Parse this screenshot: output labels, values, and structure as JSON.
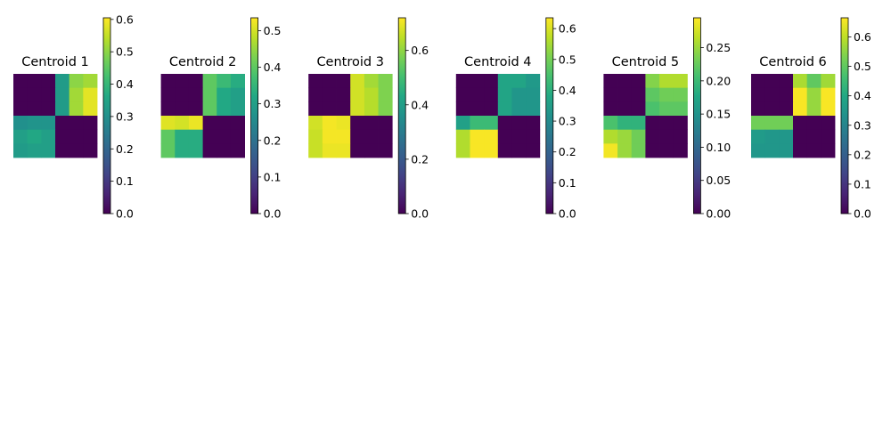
{
  "chart_data": [
    {
      "type": "heatmap",
      "title": "Centroid 1",
      "colormap": "viridis",
      "colorbar_range": [
        0,
        0.605
      ],
      "colorbar_ticks": [
        "0.0",
        "0.1",
        "0.2",
        "0.3",
        "0.4",
        "0.5",
        "0.6"
      ],
      "colorbar_tick_values": [
        0,
        0.1,
        0.2,
        0.3,
        0.4,
        0.5,
        0.6
      ],
      "values": [
        [
          0.0,
          0.0,
          0.0,
          0.33,
          0.5,
          0.52
        ],
        [
          0.0,
          0.0,
          0.0,
          0.33,
          0.52,
          0.58
        ],
        [
          0.0,
          0.0,
          0.0,
          0.33,
          0.52,
          0.58
        ],
        [
          0.3,
          0.31,
          0.31,
          0.0,
          0.0,
          0.0
        ],
        [
          0.34,
          0.36,
          0.34,
          0.0,
          0.0,
          0.0
        ],
        [
          0.33,
          0.34,
          0.34,
          0.0,
          0.0,
          0.0
        ]
      ]
    },
    {
      "type": "heatmap",
      "title": "Centroid 2",
      "colormap": "viridis",
      "colorbar_range": [
        0,
        0.535
      ],
      "colorbar_ticks": [
        "0.0",
        "0.1",
        "0.2",
        "0.3",
        "0.4",
        "0.5"
      ],
      "colorbar_tick_values": [
        0,
        0.1,
        0.2,
        0.3,
        0.4,
        0.5
      ],
      "values": [
        [
          0.0,
          0.0,
          0.0,
          0.4,
          0.36,
          0.33
        ],
        [
          0.0,
          0.0,
          0.0,
          0.4,
          0.32,
          0.3
        ],
        [
          0.0,
          0.0,
          0.0,
          0.4,
          0.32,
          0.3
        ],
        [
          0.51,
          0.5,
          0.52,
          0.0,
          0.0,
          0.0
        ],
        [
          0.4,
          0.33,
          0.33,
          0.0,
          0.0,
          0.0
        ],
        [
          0.4,
          0.33,
          0.33,
          0.0,
          0.0,
          0.0
        ]
      ]
    },
    {
      "type": "heatmap",
      "title": "Centroid 3",
      "colormap": "viridis",
      "colorbar_range": [
        0,
        0.72
      ],
      "colorbar_ticks": [
        "0.0",
        "0.2",
        "0.4",
        "0.6"
      ],
      "colorbar_tick_values": [
        0,
        0.2,
        0.4,
        0.6
      ],
      "values": [
        [
          0.0,
          0.0,
          0.0,
          0.67,
          0.62,
          0.58
        ],
        [
          0.0,
          0.0,
          0.0,
          0.67,
          0.64,
          0.58
        ],
        [
          0.0,
          0.0,
          0.0,
          0.67,
          0.64,
          0.58
        ],
        [
          0.67,
          0.71,
          0.7,
          0.0,
          0.0,
          0.0
        ],
        [
          0.66,
          0.71,
          0.71,
          0.0,
          0.0,
          0.0
        ],
        [
          0.66,
          0.7,
          0.7,
          0.0,
          0.0,
          0.0
        ]
      ]
    },
    {
      "type": "heatmap",
      "title": "Centroid 4",
      "colormap": "viridis",
      "colorbar_range": [
        0,
        0.635
      ],
      "colorbar_ticks": [
        "0.0",
        "0.1",
        "0.2",
        "0.3",
        "0.4",
        "0.5",
        "0.6"
      ],
      "colorbar_tick_values": [
        0,
        0.1,
        0.2,
        0.3,
        0.4,
        0.5,
        0.6
      ],
      "values": [
        [
          0.0,
          0.0,
          0.0,
          0.37,
          0.37,
          0.34
        ],
        [
          0.0,
          0.0,
          0.0,
          0.37,
          0.33,
          0.33
        ],
        [
          0.0,
          0.0,
          0.0,
          0.37,
          0.33,
          0.33
        ],
        [
          0.36,
          0.43,
          0.43,
          0.0,
          0.0,
          0.0
        ],
        [
          0.56,
          0.63,
          0.63,
          0.0,
          0.0,
          0.0
        ],
        [
          0.56,
          0.63,
          0.63,
          0.0,
          0.0,
          0.0
        ]
      ]
    },
    {
      "type": "heatmap",
      "title": "Centroid 5",
      "colormap": "viridis",
      "colorbar_range": [
        0,
        0.295
      ],
      "colorbar_ticks": [
        "0.00",
        "0.05",
        "0.10",
        "0.15",
        "0.20",
        "0.25"
      ],
      "colorbar_tick_values": [
        0,
        0.05,
        0.1,
        0.15,
        0.2,
        0.25
      ],
      "values": [
        [
          0.0,
          0.0,
          0.0,
          0.24,
          0.26,
          0.26
        ],
        [
          0.0,
          0.0,
          0.0,
          0.22,
          0.23,
          0.23
        ],
        [
          0.0,
          0.0,
          0.0,
          0.21,
          0.22,
          0.22
        ],
        [
          0.21,
          0.19,
          0.19,
          0.0,
          0.0,
          0.0
        ],
        [
          0.26,
          0.25,
          0.23,
          0.0,
          0.0,
          0.0
        ],
        [
          0.29,
          0.25,
          0.23,
          0.0,
          0.0,
          0.0
        ]
      ]
    },
    {
      "type": "heatmap",
      "title": "Centroid 6",
      "colormap": "viridis",
      "colorbar_range": [
        0,
        0.665
      ],
      "colorbar_ticks": [
        "0.0",
        "0.1",
        "0.2",
        "0.3",
        "0.4",
        "0.5",
        "0.6"
      ],
      "colorbar_tick_values": [
        0,
        0.1,
        0.2,
        0.3,
        0.4,
        0.5,
        0.6
      ],
      "values": [
        [
          0.0,
          0.0,
          0.0,
          0.58,
          0.5,
          0.57
        ],
        [
          0.0,
          0.0,
          0.0,
          0.66,
          0.56,
          0.66
        ],
        [
          0.0,
          0.0,
          0.0,
          0.66,
          0.56,
          0.66
        ],
        [
          0.52,
          0.52,
          0.52,
          0.0,
          0.0,
          0.0
        ],
        [
          0.36,
          0.35,
          0.35,
          0.0,
          0.0,
          0.0
        ],
        [
          0.35,
          0.35,
          0.35,
          0.0,
          0.0,
          0.0
        ]
      ]
    }
  ]
}
